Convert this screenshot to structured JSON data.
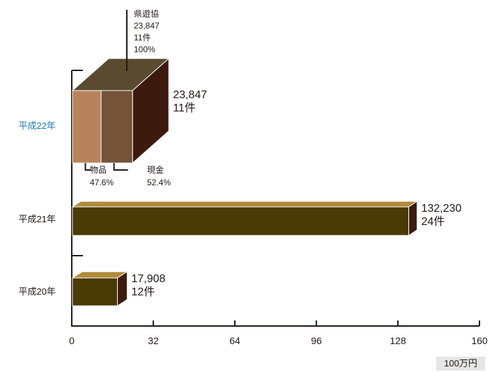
{
  "chart_data": {
    "type": "bar",
    "orientation": "horizontal",
    "style": "3d",
    "unit": "100万円",
    "xlim": [
      0,
      160
    ],
    "x_ticks": [
      "0",
      "32",
      "64",
      "96",
      "128",
      "160"
    ],
    "categories": [
      "平成22年",
      "平成21年",
      "平成20年"
    ],
    "highlight_category": "平成22年",
    "bars": [
      {
        "category": "平成22年",
        "value": 23.847,
        "amount_label": "23,847",
        "count_label": "11件",
        "segments": [
          {
            "name": "物品",
            "percent": 47.6,
            "percent_label": "47.6%",
            "color": "#b8835c"
          },
          {
            "name": "現金",
            "percent": 52.4,
            "percent_label": "52.4%",
            "color": "#745339"
          }
        ],
        "top_note": {
          "org": "県遊協",
          "amount": "23,847",
          "count": "11件",
          "percent": "100%"
        },
        "top_color": "#5a4a2f",
        "side_color": "#3d1a0e"
      },
      {
        "category": "平成21年",
        "value": 132.23,
        "amount_label": "132,230",
        "count_label": "24件",
        "front_color": "#4a3a06",
        "top_color": "#b08a3a",
        "side_color": "#3d1a0e"
      },
      {
        "category": "平成20年",
        "value": 17.908,
        "amount_label": "17,908",
        "count_label": "12件",
        "front_color": "#4a3a06",
        "top_color": "#b08a3a",
        "side_color": "#3d1a0e"
      }
    ],
    "colors": {
      "highlight_label": "#1a78b4",
      "text": "#231815",
      "axis": "#231815"
    }
  }
}
